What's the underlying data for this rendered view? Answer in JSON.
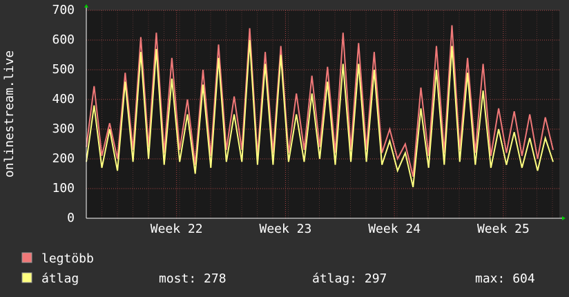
{
  "chart_data": {
    "type": "line",
    "ylabel": "onlinestream.live",
    "x": [
      0,
      0.5,
      1,
      1.5,
      2,
      2.5,
      3,
      3.5,
      4,
      4.5,
      5,
      5.5,
      6,
      6.5,
      7,
      7.5,
      8,
      8.5,
      9,
      9.5,
      10,
      10.5,
      11,
      11.5,
      12,
      12.5,
      13,
      13.5,
      14,
      14.5,
      15,
      15.5,
      16,
      16.5,
      17,
      17.5,
      18,
      18.5,
      19,
      19.5,
      20,
      20.5,
      21,
      21.5,
      22,
      22.5,
      23,
      23.5,
      24,
      24.5,
      25,
      25.5,
      26,
      26.5,
      27,
      27.5,
      28,
      28.5,
      29,
      29.5,
      30
    ],
    "series": [
      {
        "name": "legtöbb",
        "color": "#f07878",
        "values": [
          240,
          445,
          210,
          320,
          200,
          490,
          230,
          610,
          240,
          625,
          220,
          540,
          230,
          400,
          180,
          500,
          210,
          585,
          230,
          410,
          230,
          640,
          210,
          560,
          220,
          580,
          220,
          420,
          230,
          480,
          240,
          510,
          220,
          625,
          230,
          590,
          230,
          560,
          220,
          300,
          200,
          250,
          140,
          440,
          210,
          580,
          220,
          650,
          230,
          540,
          220,
          520,
          210,
          370,
          220,
          360,
          210,
          350,
          200,
          340,
          230
        ]
      },
      {
        "name": "átlag",
        "color": "#ffff80",
        "values": [
          190,
          380,
          170,
          300,
          160,
          460,
          190,
          560,
          200,
          570,
          180,
          470,
          190,
          350,
          150,
          450,
          170,
          540,
          190,
          350,
          190,
          600,
          180,
          520,
          180,
          550,
          190,
          350,
          190,
          420,
          200,
          460,
          180,
          520,
          190,
          520,
          190,
          500,
          180,
          260,
          160,
          220,
          105,
          370,
          170,
          500,
          180,
          580,
          190,
          490,
          180,
          430,
          170,
          300,
          180,
          290,
          170,
          270,
          160,
          270,
          190
        ]
      }
    ],
    "xlim": [
      0,
      30.4
    ],
    "xticks": [
      {
        "value": 5.8,
        "label": "Week 22"
      },
      {
        "value": 12.8,
        "label": "Week 23"
      },
      {
        "value": 19.8,
        "label": "Week 24"
      },
      {
        "value": 26.8,
        "label": "Week 25"
      }
    ],
    "ylim": [
      0,
      700
    ],
    "yticks": [
      0,
      100,
      200,
      300,
      400,
      500,
      600,
      700
    ],
    "grid": true,
    "stats": [
      {
        "label": "most:",
        "value": 278
      },
      {
        "label": "átlag:",
        "value": 297
      },
      {
        "label": "max:",
        "value": 604
      }
    ]
  }
}
